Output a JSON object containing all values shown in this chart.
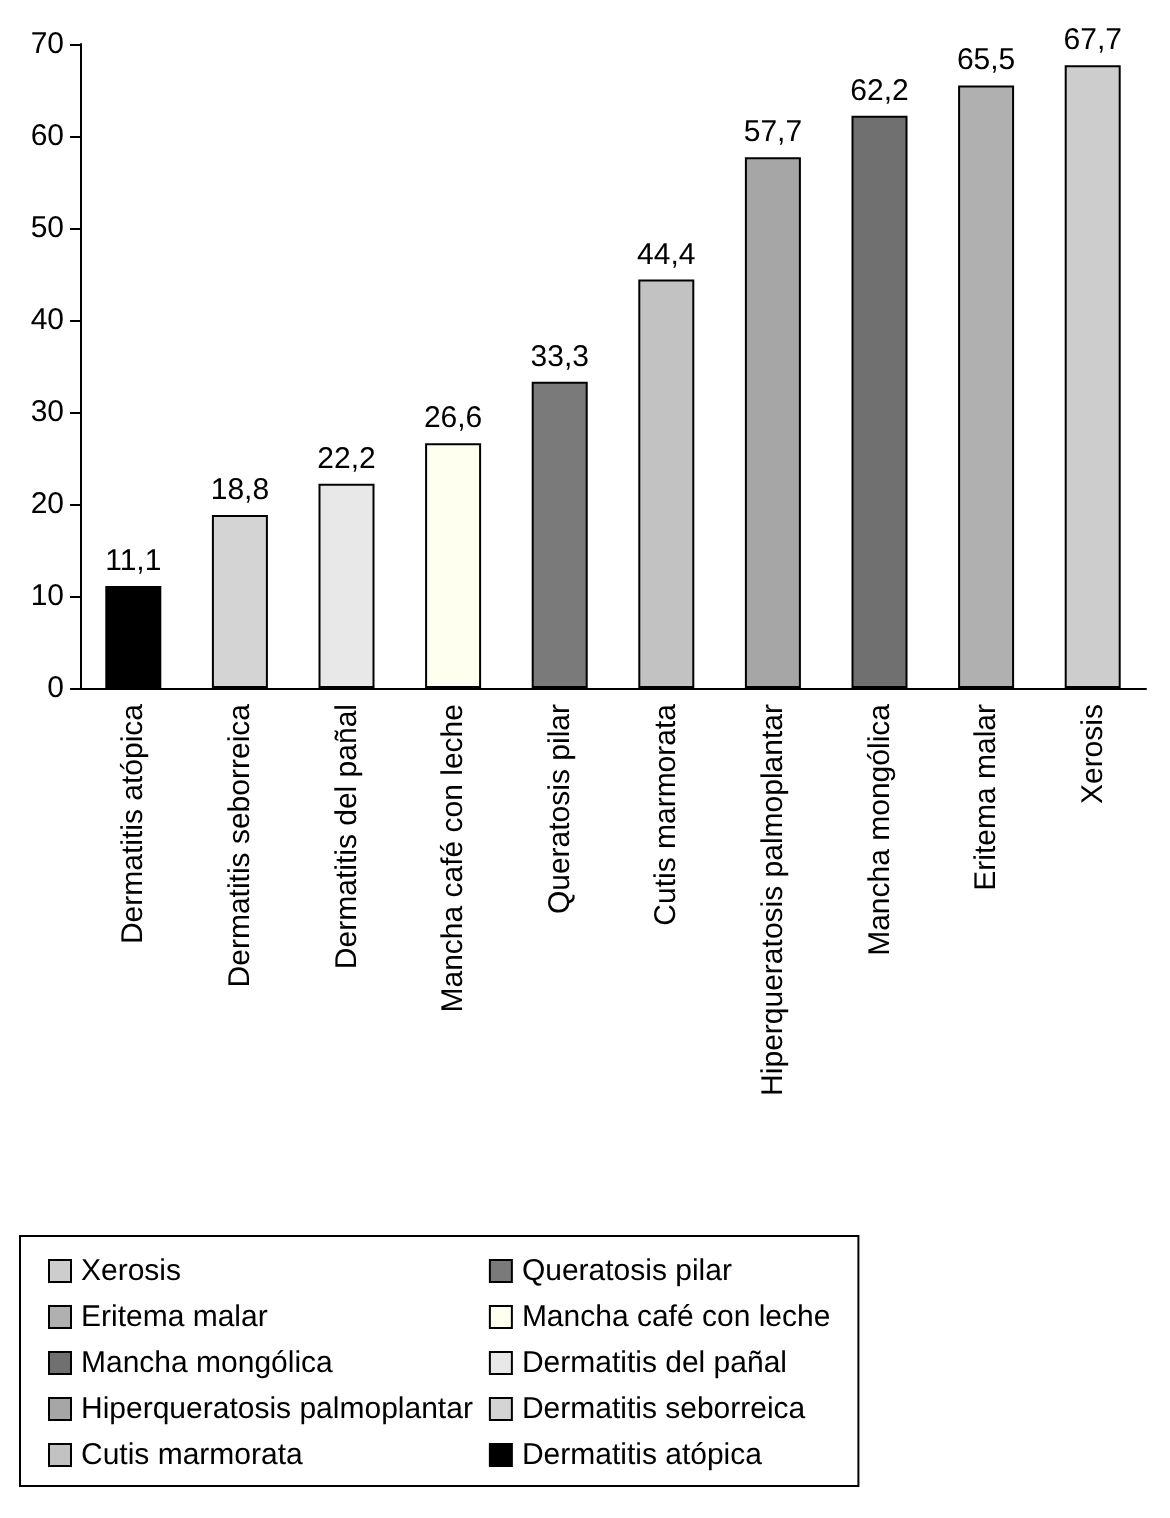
{
  "chart_data": {
    "type": "bar",
    "categories": [
      "Dermatitis atópica",
      "Dermatitis seborreica",
      "Dermatitis del pañal",
      "Mancha café con leche",
      "Queratosis pilar",
      "Cutis marmorata",
      "Hiperqueratosis palmoplantar",
      "Mancha mongólica",
      "Eritema malar",
      "Xerosis"
    ],
    "series": [
      {
        "name": "Xerosis",
        "color": "#cdcdcd",
        "values": [
          null,
          null,
          null,
          null,
          null,
          null,
          null,
          null,
          null,
          67.7
        ],
        "value_labels": [
          null,
          null,
          null,
          null,
          null,
          null,
          null,
          null,
          null,
          "67,7"
        ]
      },
      {
        "name": "Eritema malar",
        "color": "#b0b0b0",
        "values": [
          null,
          null,
          null,
          null,
          null,
          null,
          null,
          null,
          65.5,
          null
        ],
        "value_labels": [
          null,
          null,
          null,
          null,
          null,
          null,
          null,
          null,
          "65,5",
          null
        ]
      },
      {
        "name": "Mancha mongólica",
        "color": "#707070",
        "values": [
          null,
          null,
          null,
          null,
          null,
          null,
          null,
          62.2,
          null,
          null
        ],
        "value_labels": [
          null,
          null,
          null,
          null,
          null,
          null,
          null,
          "62,2",
          null,
          null
        ]
      },
      {
        "name": "Hiperqueratosis palmoplantar",
        "color": "#a6a6a6",
        "values": [
          null,
          null,
          null,
          null,
          null,
          null,
          57.7,
          null,
          null,
          null
        ],
        "value_labels": [
          null,
          null,
          null,
          null,
          null,
          null,
          "57,7",
          null,
          null,
          null
        ]
      },
      {
        "name": "Cutis marmorata",
        "color": "#c2c2c2",
        "values": [
          null,
          null,
          null,
          null,
          null,
          44.4,
          null,
          null,
          null,
          null
        ],
        "value_labels": [
          null,
          null,
          null,
          null,
          null,
          "44,4",
          null,
          null,
          null,
          null
        ]
      },
      {
        "name": "Queratosis pilar",
        "color": "#7a7a7a",
        "values": [
          null,
          null,
          null,
          null,
          33.3,
          null,
          null,
          null,
          null,
          null
        ],
        "value_labels": [
          null,
          null,
          null,
          null,
          "33,3",
          null,
          null,
          null,
          null,
          null
        ]
      },
      {
        "name": "Mancha café con leche",
        "color": "#fffff0",
        "values": [
          null,
          null,
          null,
          26.6,
          null,
          null,
          null,
          null,
          null,
          null
        ],
        "value_labels": [
          null,
          null,
          null,
          "26,6",
          null,
          null,
          null,
          null,
          null,
          null
        ]
      },
      {
        "name": "Dermatitis del pañal",
        "color": "#e8e8e8",
        "values": [
          null,
          null,
          22.2,
          null,
          null,
          null,
          null,
          null,
          null,
          null
        ],
        "value_labels": [
          null,
          null,
          "22,2",
          null,
          null,
          null,
          null,
          null,
          null,
          null
        ]
      },
      {
        "name": "Dermatitis seborreica",
        "color": "#d4d4d4",
        "values": [
          null,
          18.8,
          null,
          null,
          null,
          null,
          null,
          null,
          null,
          null
        ],
        "value_labels": [
          null,
          "18,8",
          null,
          null,
          null,
          null,
          null,
          null,
          null,
          null
        ]
      },
      {
        "name": "Dermatitis atópica",
        "color": "#000000",
        "values": [
          11.1,
          null,
          null,
          null,
          null,
          null,
          null,
          null,
          null,
          null
        ],
        "value_labels": [
          "11,1",
          null,
          null,
          null,
          null,
          null,
          null,
          null,
          null,
          null
        ]
      }
    ],
    "ylim": [
      0,
      70
    ],
    "yticks": [
      0,
      10,
      20,
      30,
      40,
      50,
      60,
      70
    ],
    "legend": "bottom",
    "grid": false
  }
}
